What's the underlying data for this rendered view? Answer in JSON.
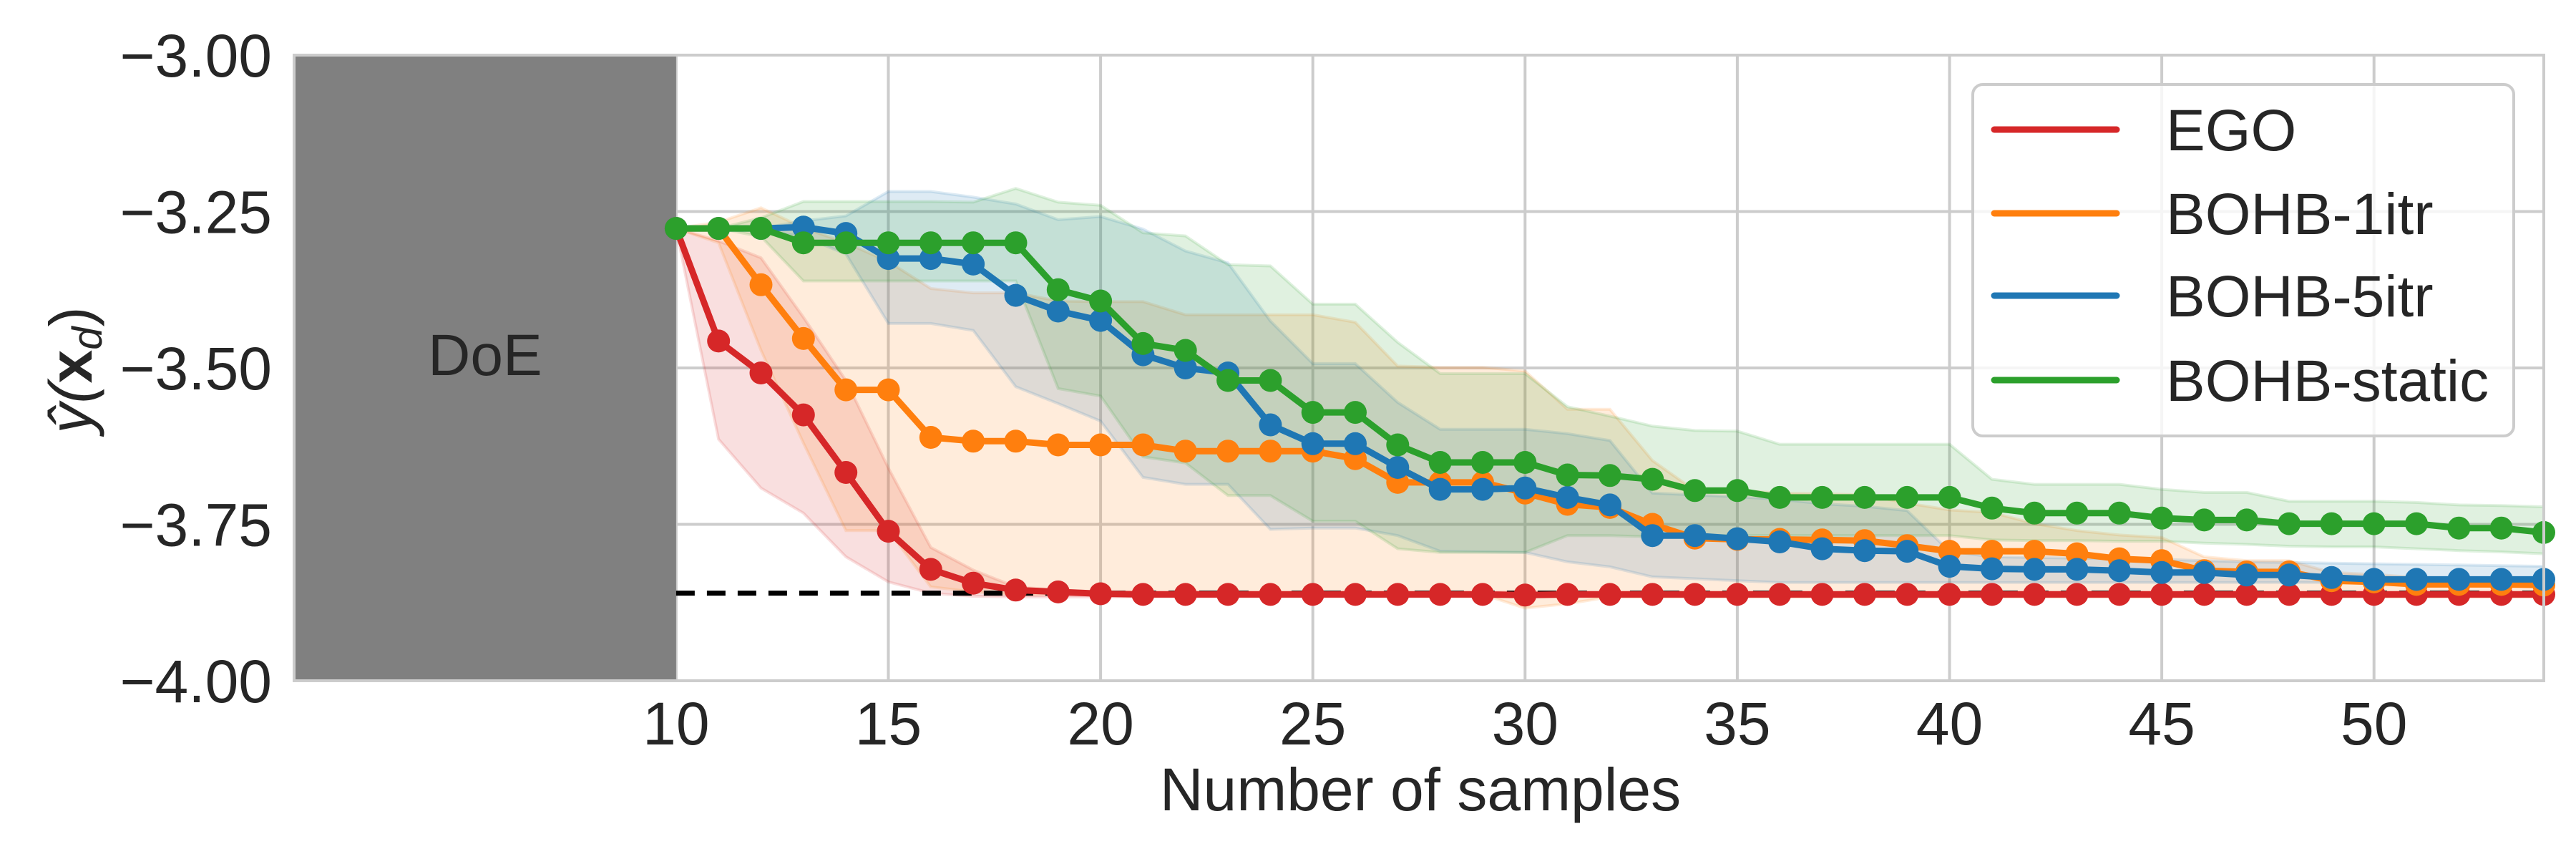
{
  "chart_data": {
    "type": "line",
    "title": "",
    "xlabel": "Number of samples",
    "ylabel_parts": {
      "base": "ŷ(",
      "bold": "x",
      "sub": "d",
      "close": ")"
    },
    "xlim": [
      1,
      54
    ],
    "ylim": [
      -4.0,
      -3.0
    ],
    "grid": true,
    "legend_position": "top-right",
    "x_ticks": [
      10,
      15,
      20,
      25,
      30,
      35,
      40,
      45,
      50
    ],
    "x_tick_labels": [
      "10",
      "15",
      "20",
      "25",
      "30",
      "35",
      "40",
      "45",
      "50"
    ],
    "y_ticks": [
      -3.0,
      -3.25,
      -3.5,
      -3.75,
      -4.0
    ],
    "y_tick_labels": [
      "−3.00",
      "−3.25",
      "−3.50",
      "−3.75",
      "−4.00"
    ],
    "doe_region": {
      "x_start": 1,
      "x_end": 10,
      "label": "DoE",
      "color": "#808080"
    },
    "reference_line": {
      "y": -3.86,
      "style": "dashed",
      "color": "#000000"
    },
    "x": [
      10,
      11,
      12,
      13,
      14,
      15,
      16,
      17,
      18,
      19,
      20,
      21,
      22,
      23,
      24,
      25,
      26,
      27,
      28,
      29,
      30,
      31,
      32,
      33,
      34,
      35,
      36,
      37,
      38,
      39,
      40,
      41,
      42,
      43,
      44,
      45,
      46,
      47,
      48,
      49,
      50,
      51,
      52,
      53,
      54
    ],
    "series": [
      {
        "name": "EGO",
        "color": "#d62728",
        "values": [
          -3.277,
          -3.457,
          -3.508,
          -3.575,
          -3.667,
          -3.761,
          -3.822,
          -3.844,
          -3.855,
          -3.858,
          -3.861,
          -3.862,
          -3.862,
          -3.862,
          -3.862,
          -3.862,
          -3.862,
          -3.862,
          -3.862,
          -3.862,
          -3.863,
          -3.862,
          -3.862,
          -3.862,
          -3.862,
          -3.862,
          -3.862,
          -3.862,
          -3.862,
          -3.862,
          -3.862,
          -3.862,
          -3.862,
          -3.862,
          -3.862,
          -3.862,
          -3.862,
          -3.862,
          -3.862,
          -3.862,
          -3.862,
          -3.862,
          -3.862,
          -3.862,
          -3.862
        ],
        "upper": [
          -3.277,
          -3.297,
          -3.324,
          -3.419,
          -3.52,
          -3.66,
          -3.787,
          -3.823,
          -3.85,
          -3.855,
          -3.858,
          -3.858,
          -3.858,
          -3.858,
          -3.858,
          -3.858,
          -3.858,
          -3.858,
          -3.858,
          -3.858,
          -3.858,
          -3.858,
          -3.858,
          -3.858,
          -3.858,
          -3.858,
          -3.858,
          -3.858,
          -3.858,
          -3.858,
          -3.858,
          -3.858,
          -3.858,
          -3.858,
          -3.858,
          -3.858,
          -3.858,
          -3.858,
          -3.858,
          -3.858,
          -3.858,
          -3.858,
          -3.858,
          -3.858,
          -3.858
        ],
        "lower": [
          -3.277,
          -3.614,
          -3.692,
          -3.732,
          -3.802,
          -3.842,
          -3.86,
          -3.865,
          -3.866,
          -3.866,
          -3.866,
          -3.866,
          -3.866,
          -3.866,
          -3.866,
          -3.866,
          -3.866,
          -3.866,
          -3.866,
          -3.866,
          -3.866,
          -3.866,
          -3.866,
          -3.866,
          -3.866,
          -3.866,
          -3.866,
          -3.866,
          -3.866,
          -3.866,
          -3.866,
          -3.866,
          -3.866,
          -3.866,
          -3.866,
          -3.866,
          -3.866,
          -3.866,
          -3.866,
          -3.866,
          -3.866,
          -3.866,
          -3.866,
          -3.866,
          -3.866
        ]
      },
      {
        "name": "BOHB-1itr",
        "color": "#ff7f0e",
        "values": [
          -3.277,
          -3.277,
          -3.367,
          -3.453,
          -3.535,
          -3.535,
          -3.611,
          -3.617,
          -3.617,
          -3.623,
          -3.623,
          -3.623,
          -3.633,
          -3.633,
          -3.633,
          -3.633,
          -3.645,
          -3.683,
          -3.683,
          -3.683,
          -3.7,
          -3.718,
          -3.723,
          -3.75,
          -3.772,
          -3.774,
          -3.774,
          -3.775,
          -3.776,
          -3.784,
          -3.793,
          -3.793,
          -3.793,
          -3.797,
          -3.805,
          -3.808,
          -3.824,
          -3.826,
          -3.826,
          -3.84,
          -3.842,
          -3.846,
          -3.846,
          -3.846,
          -3.847
        ],
        "upper": [
          -3.277,
          -3.267,
          -3.244,
          -3.276,
          -3.3,
          -3.33,
          -3.373,
          -3.38,
          -3.38,
          -3.393,
          -3.394,
          -3.394,
          -3.415,
          -3.415,
          -3.415,
          -3.415,
          -3.427,
          -3.497,
          -3.499,
          -3.499,
          -3.505,
          -3.566,
          -3.566,
          -3.648,
          -3.696,
          -3.696,
          -3.7,
          -3.701,
          -3.703,
          -3.716,
          -3.727,
          -3.731,
          -3.749,
          -3.76,
          -3.767,
          -3.771,
          -3.802,
          -3.808,
          -3.808,
          -3.827,
          -3.83,
          -3.835,
          -3.836,
          -3.838,
          -3.84
        ],
        "lower": [
          -3.277,
          -3.3,
          -3.472,
          -3.62,
          -3.76,
          -3.76,
          -3.85,
          -3.858,
          -3.862,
          -3.862,
          -3.862,
          -3.862,
          -3.862,
          -3.862,
          -3.862,
          -3.862,
          -3.862,
          -3.862,
          -3.862,
          -3.862,
          -3.884,
          -3.877,
          -3.866,
          -3.866,
          -3.866,
          -3.866,
          -3.866,
          -3.866,
          -3.866,
          -3.866,
          -3.866,
          -3.866,
          -3.866,
          -3.866,
          -3.866,
          -3.866,
          -3.866,
          -3.866,
          -3.866,
          -3.866,
          -3.866,
          -3.866,
          -3.866,
          -3.866,
          -3.866
        ]
      },
      {
        "name": "BOHB-5itr",
        "color": "#1f77b4",
        "values": [
          -3.277,
          -3.277,
          -3.277,
          -3.275,
          -3.285,
          -3.325,
          -3.325,
          -3.334,
          -3.384,
          -3.409,
          -3.424,
          -3.479,
          -3.5,
          -3.508,
          -3.591,
          -3.621,
          -3.621,
          -3.659,
          -3.694,
          -3.694,
          -3.692,
          -3.707,
          -3.719,
          -3.768,
          -3.768,
          -3.773,
          -3.778,
          -3.789,
          -3.792,
          -3.793,
          -3.817,
          -3.821,
          -3.822,
          -3.822,
          -3.824,
          -3.827,
          -3.827,
          -3.831,
          -3.831,
          -3.835,
          -3.838,
          -3.838,
          -3.838,
          -3.838,
          -3.838
        ],
        "upper": [
          -3.277,
          -3.277,
          -3.277,
          -3.265,
          -3.257,
          -3.218,
          -3.218,
          -3.227,
          -3.238,
          -3.263,
          -3.258,
          -3.278,
          -3.313,
          -3.332,
          -3.425,
          -3.493,
          -3.493,
          -3.555,
          -3.598,
          -3.598,
          -3.598,
          -3.605,
          -3.616,
          -3.7,
          -3.703,
          -3.706,
          -3.71,
          -3.717,
          -3.721,
          -3.728,
          -3.793,
          -3.802,
          -3.803,
          -3.804,
          -3.805,
          -3.806,
          -3.808,
          -3.81,
          -3.811,
          -3.812,
          -3.813,
          -3.814,
          -3.815,
          -3.816,
          -3.817
        ],
        "lower": [
          -3.277,
          -3.277,
          -3.28,
          -3.29,
          -3.318,
          -3.429,
          -3.429,
          -3.44,
          -3.53,
          -3.557,
          -3.585,
          -3.675,
          -3.686,
          -3.686,
          -3.758,
          -3.756,
          -3.756,
          -3.768,
          -3.793,
          -3.794,
          -3.795,
          -3.81,
          -3.818,
          -3.834,
          -3.837,
          -3.84,
          -3.843,
          -3.843,
          -3.843,
          -3.843,
          -3.843,
          -3.843,
          -3.843,
          -3.843,
          -3.843,
          -3.843,
          -3.843,
          -3.843,
          -3.843,
          -3.843,
          -3.843,
          -3.843,
          -3.843,
          -3.843,
          -3.843
        ]
      },
      {
        "name": "BOHB-static",
        "color": "#2ca02c",
        "values": [
          -3.277,
          -3.277,
          -3.277,
          -3.3,
          -3.3,
          -3.3,
          -3.3,
          -3.3,
          -3.3,
          -3.375,
          -3.393,
          -3.461,
          -3.472,
          -3.52,
          -3.52,
          -3.571,
          -3.571,
          -3.623,
          -3.651,
          -3.651,
          -3.651,
          -3.671,
          -3.672,
          -3.678,
          -3.696,
          -3.696,
          -3.707,
          -3.707,
          -3.707,
          -3.707,
          -3.707,
          -3.724,
          -3.732,
          -3.732,
          -3.732,
          -3.74,
          -3.743,
          -3.743,
          -3.749,
          -3.749,
          -3.749,
          -3.749,
          -3.756,
          -3.756,
          -3.763
        ],
        "upper": [
          -3.277,
          -3.277,
          -3.26,
          -3.234,
          -3.234,
          -3.234,
          -3.234,
          -3.235,
          -3.213,
          -3.235,
          -3.24,
          -3.284,
          -3.289,
          -3.335,
          -3.337,
          -3.398,
          -3.398,
          -3.459,
          -3.509,
          -3.509,
          -3.509,
          -3.562,
          -3.577,
          -3.593,
          -3.6,
          -3.601,
          -3.622,
          -3.622,
          -3.622,
          -3.622,
          -3.622,
          -3.678,
          -3.686,
          -3.686,
          -3.686,
          -3.694,
          -3.699,
          -3.699,
          -3.713,
          -3.713,
          -3.713,
          -3.715,
          -3.719,
          -3.72,
          -3.722
        ],
        "lower": [
          -3.277,
          -3.277,
          -3.29,
          -3.361,
          -3.361,
          -3.361,
          -3.361,
          -3.361,
          -3.361,
          -3.533,
          -3.545,
          -3.642,
          -3.652,
          -3.704,
          -3.704,
          -3.745,
          -3.745,
          -3.789,
          -3.795,
          -3.795,
          -3.795,
          -3.768,
          -3.768,
          -3.77,
          -3.768,
          -3.768,
          -3.768,
          -3.768,
          -3.768,
          -3.768,
          -3.768,
          -3.775,
          -3.776,
          -3.776,
          -3.777,
          -3.777,
          -3.78,
          -3.782,
          -3.785,
          -3.786,
          -3.786,
          -3.789,
          -3.792,
          -3.794,
          -3.797
        ]
      }
    ]
  }
}
